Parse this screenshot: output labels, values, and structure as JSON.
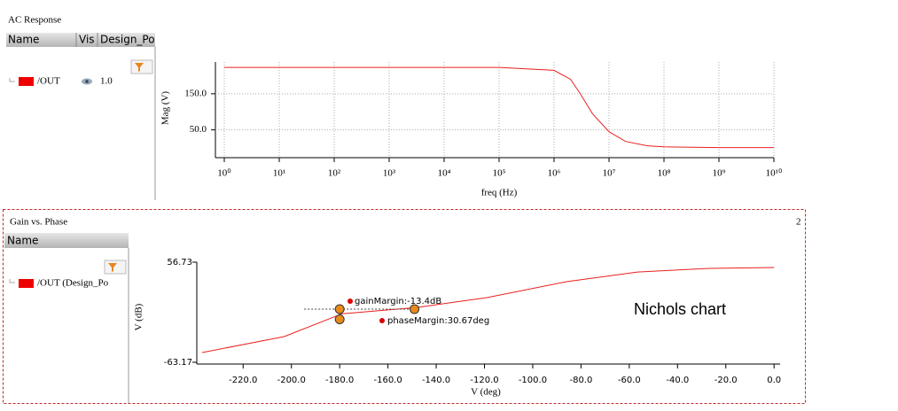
{
  "panels": [
    {
      "title": "AC Response",
      "columns": [
        "Name",
        "Vis",
        "Design_Po"
      ],
      "vis": "1.0"
    },
    {
      "title": "Gain vs. Phase",
      "columns": [
        "Name"
      ],
      "signal": "/OUT (Design_Po",
      "index": "2"
    }
  ],
  "chart_data": [
    {
      "type": "line",
      "xlabel": "freq (Hz)",
      "ylabel": "Mag (V)",
      "xscale": "log",
      "grid": true,
      "xlim": [
        1,
        10000000000
      ],
      "xticks": [
        {
          "value": 1,
          "label": "10⁰"
        },
        {
          "value": 10,
          "label": "10¹"
        },
        {
          "value": 100,
          "label": "10²"
        },
        {
          "value": 1000,
          "label": "10³"
        },
        {
          "value": 10000,
          "label": "10⁴"
        },
        {
          "value": 100000,
          "label": "10⁵"
        },
        {
          "value": 1000000,
          "label": "10⁶"
        },
        {
          "value": 10000000,
          "label": "10⁷"
        },
        {
          "value": 100000000,
          "label": "10⁸"
        },
        {
          "value": 1000000000,
          "label": "10⁹"
        },
        {
          "value": 10000000000,
          "label": "10¹⁰"
        }
      ],
      "ylim": [
        -27,
        238
      ],
      "yticks": [
        {
          "value": 50,
          "label": "50.0"
        },
        {
          "value": 150,
          "label": "150.0"
        }
      ],
      "series": [
        {
          "name": "/OUT",
          "color": "#e8201e",
          "x": [
            1,
            10,
            100,
            1000,
            10000,
            100000,
            1000000,
            2000000,
            3000000,
            5000000,
            10000000,
            20000000,
            50000000,
            100000000,
            1000000000,
            10000000000
          ],
          "values": [
            223,
            223,
            223,
            223,
            223,
            223,
            215,
            190,
            150,
            95,
            45,
            18,
            6,
            3,
            1,
            1
          ]
        }
      ]
    },
    {
      "type": "line",
      "xlabel": "V (deg)",
      "ylabel": "V (dB)",
      "grid": false,
      "xlim": [
        -237,
        2.5
      ],
      "xticks": [
        {
          "value": -220,
          "label": "-220.0"
        },
        {
          "value": -200,
          "label": "-200.0"
        },
        {
          "value": -180,
          "label": "-180.0"
        },
        {
          "value": -160,
          "label": "-160.0"
        },
        {
          "value": -140,
          "label": "-140.0"
        },
        {
          "value": -120,
          "label": "-120.0"
        },
        {
          "value": -100,
          "label": "-100.0"
        },
        {
          "value": -80,
          "label": "-80.0"
        },
        {
          "value": -60,
          "label": "-60.0"
        },
        {
          "value": -40,
          "label": "-40.0"
        },
        {
          "value": -20,
          "label": "-20.0"
        },
        {
          "value": 0,
          "label": "0.0"
        }
      ],
      "ylim": [
        -63.17,
        56.73
      ],
      "yticks": [
        -63.17,
        56.73
      ],
      "series": [
        {
          "color": "#e8201e",
          "x": [
            -237,
            -203,
            -179,
            -148,
            -119,
            -86,
            -56.6,
            -27,
            0
          ],
          "values": [
            -51.5,
            -32.4,
            -5,
            2.5,
            14.3,
            33.4,
            45,
            49.3,
            50.4
          ]
        }
      ],
      "markers": {
        "color": "#e88a1a",
        "x": [
          -180,
          -180,
          -149
        ],
        "y": [
          0.5,
          -11.7,
          0.5
        ]
      },
      "annotations": [
        "gainMargin:-13.4dB",
        "phaseMargin:30.67deg",
        "Nichols chart"
      ]
    }
  ]
}
